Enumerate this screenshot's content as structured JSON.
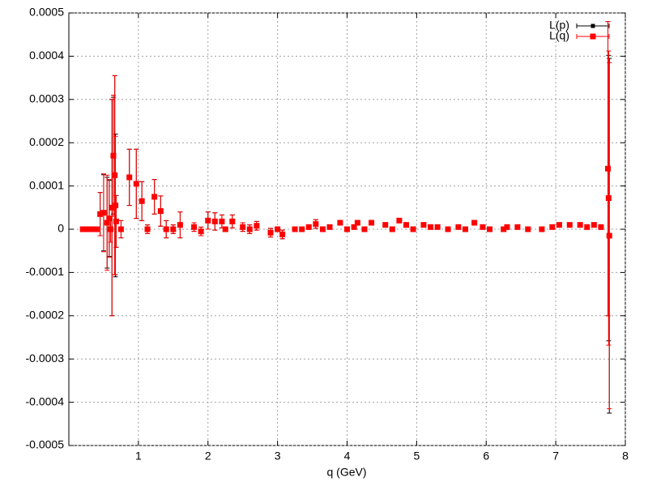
{
  "chart_data": {
    "type": "errorbar",
    "xlabel": "q (GeV)",
    "xlim": [
      0,
      8
    ],
    "xticks": [
      1,
      2,
      3,
      4,
      5,
      6,
      7,
      8
    ],
    "ylim": [
      -0.0005,
      0.0005
    ],
    "yticks": [
      -0.0005,
      -0.0004,
      -0.0003,
      -0.0002,
      -0.0001,
      0,
      0.0001,
      0.0002,
      0.0003,
      0.0004,
      0.0005
    ],
    "grid": true,
    "legend": "upper right",
    "x": [
      0.2,
      0.25,
      0.3,
      0.35,
      0.4,
      0.45,
      0.5,
      0.55,
      0.58,
      0.6,
      0.62,
      0.64,
      0.66,
      0.67,
      0.68,
      0.75,
      0.87,
      0.97,
      1.05,
      1.13,
      1.23,
      1.32,
      1.4,
      1.5,
      1.6,
      1.8,
      1.9,
      2.0,
      2.1,
      2.2,
      2.25,
      2.35,
      2.5,
      2.6,
      2.7,
      2.9,
      3.0,
      3.07,
      3.25,
      3.35,
      3.45,
      3.55,
      3.65,
      3.75,
      3.9,
      4.0,
      4.1,
      4.15,
      4.25,
      4.35,
      4.55,
      4.65,
      4.75,
      4.85,
      4.95,
      5.1,
      5.2,
      5.3,
      5.45,
      5.6,
      5.7,
      5.83,
      5.95,
      6.05,
      6.25,
      6.3,
      6.45,
      6.6,
      6.8,
      6.95,
      7.05,
      7.2,
      7.35,
      7.45,
      7.55,
      7.65,
      7.75,
      7.76,
      7.77
    ],
    "series": [
      {
        "name": "L(p)",
        "color": "#000000",
        "values": [
          0,
          0,
          0,
          0,
          0,
          3.5e-05,
          3.8e-05,
          1.5e-05,
          2.5e-05,
          0,
          5e-05,
          0.00017,
          0.000125,
          5.5e-05,
          1.8e-05,
          0,
          0.00012,
          0.000105,
          6.5e-05,
          0,
          7.5e-05,
          4.2e-05,
          0,
          0,
          1e-05,
          5e-06,
          -5e-06,
          2e-05,
          1.8e-05,
          1.8e-05,
          0,
          1.8e-05,
          5e-06,
          0,
          8e-06,
          -8e-06,
          0,
          -1.2e-05,
          0,
          0,
          5e-06,
          1.2e-05,
          0,
          5e-06,
          1.5e-05,
          0,
          5e-06,
          1.5e-05,
          0,
          1.5e-05,
          1e-05,
          0,
          2e-05,
          1e-05,
          0,
          1e-05,
          5e-06,
          5e-06,
          0,
          5e-06,
          0,
          1.5e-05,
          5e-06,
          0,
          0,
          5e-06,
          5e-06,
          0,
          0,
          5e-06,
          1e-05,
          1e-05,
          1e-05,
          5e-06,
          1e-05,
          5e-06,
          0.00014,
          7.2e-05,
          -1.5e-05
        ],
        "errors": [
          0,
          0,
          0,
          0,
          0,
          5e-05,
          8.8e-05,
          0.000105,
          8.8e-05,
          3e-05,
          0.00025,
          0.000135,
          0.00023,
          0.000165,
          6e-05,
          2e-05,
          6.5e-05,
          8e-05,
          4.5e-05,
          1e-05,
          4e-05,
          3.5e-05,
          2e-05,
          1e-05,
          3e-05,
          1e-05,
          1e-05,
          2e-05,
          2e-05,
          1.5e-05,
          5e-06,
          1.5e-05,
          1e-05,
          1e-05,
          1e-05,
          1e-05,
          5e-06,
          1e-05,
          5e-06,
          5e-06,
          5e-06,
          1e-05,
          5e-06,
          5e-06,
          5e-06,
          5e-06,
          5e-06,
          5e-06,
          5e-06,
          5e-06,
          5e-06,
          5e-06,
          5e-06,
          5e-06,
          5e-06,
          5e-06,
          5e-06,
          5e-06,
          5e-06,
          5e-06,
          5e-06,
          5e-06,
          5e-06,
          5e-06,
          5e-06,
          5e-06,
          5e-06,
          5e-06,
          5e-06,
          5e-06,
          5e-06,
          5e-06,
          5e-06,
          5e-06,
          5e-06,
          5e-06,
          0.00034,
          0.00033,
          0.00041
        ]
      },
      {
        "name": "L(q)",
        "color": "#ff0000",
        "values": [
          0,
          0,
          0,
          0,
          0,
          3.5e-05,
          3.8e-05,
          1.5e-05,
          2.5e-05,
          0,
          5e-05,
          0.00017,
          0.000125,
          5.5e-05,
          1.8e-05,
          0,
          0.00012,
          0.000105,
          6.5e-05,
          0,
          7.5e-05,
          4.2e-05,
          0,
          0,
          1e-05,
          5e-06,
          -5e-06,
          2e-05,
          1.8e-05,
          1.8e-05,
          0,
          1.8e-05,
          5e-06,
          0,
          8e-06,
          -8e-06,
          0,
          -1.2e-05,
          0,
          0,
          5e-06,
          1.2e-05,
          0,
          5e-06,
          1.5e-05,
          0,
          5e-06,
          1.5e-05,
          0,
          1.5e-05,
          1e-05,
          0,
          2e-05,
          1e-05,
          0,
          1e-05,
          5e-06,
          5e-06,
          0,
          5e-06,
          0,
          1.5e-05,
          5e-06,
          0,
          0,
          5e-06,
          5e-06,
          0,
          0,
          5e-06,
          1e-05,
          1e-05,
          1e-05,
          5e-06,
          1e-05,
          5e-06,
          0.00014,
          7.2e-05,
          -1.5e-05
        ],
        "errors": [
          0,
          0,
          0,
          0,
          0,
          5e-05,
          9e-05,
          0.00011,
          9e-05,
          3e-05,
          0.00025,
          0.00014,
          0.00023,
          0.00016,
          6e-05,
          2e-05,
          6.5e-05,
          8e-05,
          4.5e-05,
          1e-05,
          4e-05,
          3.5e-05,
          2e-05,
          1e-05,
          3e-05,
          1e-05,
          1e-05,
          2e-05,
          2e-05,
          1.5e-05,
          5e-06,
          1.5e-05,
          1e-05,
          1e-05,
          1e-05,
          1e-05,
          5e-06,
          1e-05,
          5e-06,
          5e-06,
          5e-06,
          1e-05,
          5e-06,
          5e-06,
          5e-06,
          5e-06,
          5e-06,
          5e-06,
          5e-06,
          5e-06,
          5e-06,
          5e-06,
          5e-06,
          5e-06,
          5e-06,
          5e-06,
          5e-06,
          5e-06,
          5e-06,
          5e-06,
          5e-06,
          5e-06,
          5e-06,
          5e-06,
          5e-06,
          5e-06,
          5e-06,
          5e-06,
          5e-06,
          5e-06,
          5e-06,
          5e-06,
          5e-06,
          5e-06,
          5e-06,
          5e-06,
          0.00034,
          0.00034,
          0.0004
        ]
      }
    ]
  }
}
